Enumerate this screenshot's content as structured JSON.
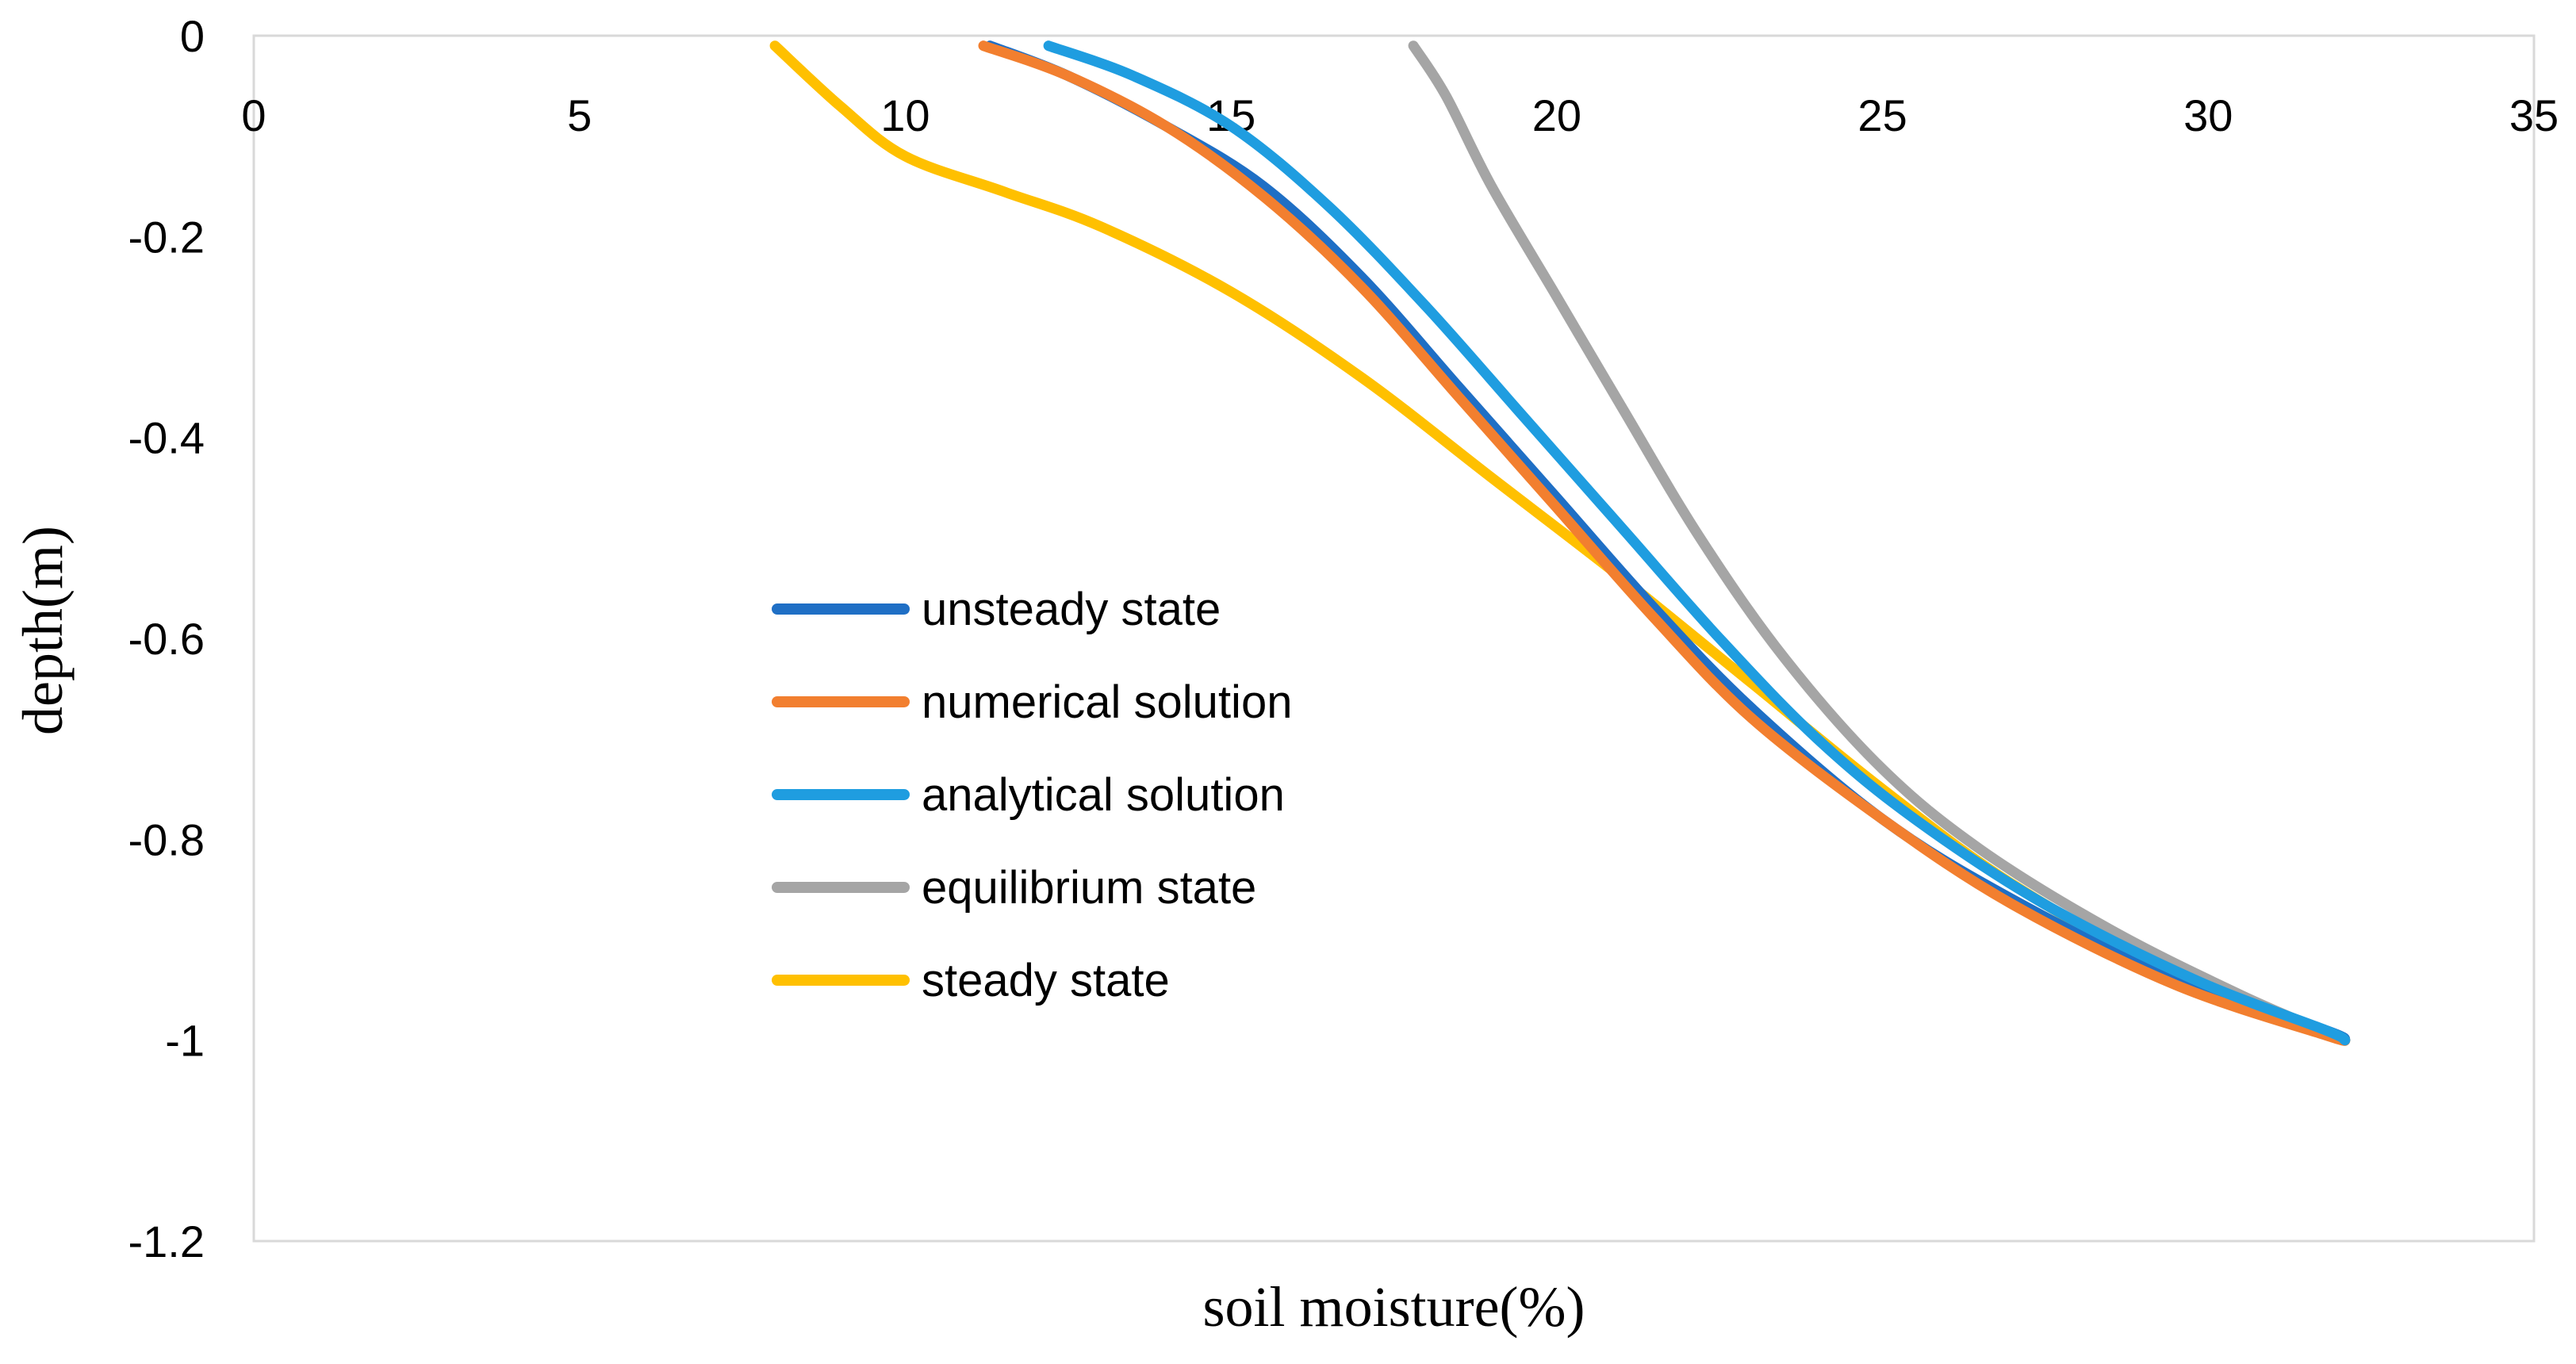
{
  "chart_data": {
    "type": "line",
    "title": "",
    "xlabel": "soil moisture(%)",
    "ylabel": "depth(m)",
    "xlim": [
      0,
      35
    ],
    "ylim": [
      -1.2,
      0
    ],
    "x_ticks": [
      "0",
      "5",
      "10",
      "15",
      "20",
      "25",
      "30",
      "35"
    ],
    "y_ticks": [
      "0",
      "-0.2",
      "-0.4",
      "-0.6",
      "-0.8",
      "-1",
      "-1.2"
    ],
    "x_axis_position": "top",
    "grid": false,
    "legend_position": "center-left",
    "series": [
      {
        "name": "unsteady state",
        "color": "#1f6fc5",
        "points": [
          [
            11.3,
            -0.01
          ],
          [
            12.5,
            -0.04
          ],
          [
            14,
            -0.09
          ],
          [
            15.5,
            -0.15
          ],
          [
            17,
            -0.24
          ],
          [
            18.5,
            -0.35
          ],
          [
            20,
            -0.46
          ],
          [
            21.5,
            -0.57
          ],
          [
            23,
            -0.67
          ],
          [
            25,
            -0.78
          ],
          [
            27,
            -0.86
          ],
          [
            29.5,
            -0.94
          ],
          [
            31.8,
            -0.99
          ],
          [
            32.1,
            -1.0
          ]
        ]
      },
      {
        "name": "numerical solution",
        "color": "#f27f2f",
        "points": [
          [
            11.2,
            -0.01
          ],
          [
            12.5,
            -0.04
          ],
          [
            14,
            -0.09
          ],
          [
            15.5,
            -0.16
          ],
          [
            17,
            -0.25
          ],
          [
            18.5,
            -0.36
          ],
          [
            20,
            -0.47
          ],
          [
            21.5,
            -0.58
          ],
          [
            23,
            -0.68
          ],
          [
            25,
            -0.78
          ],
          [
            27,
            -0.865
          ],
          [
            29.5,
            -0.945
          ],
          [
            31.8,
            -0.995
          ],
          [
            32.1,
            -1.0
          ]
        ]
      },
      {
        "name": "analytical solution",
        "color": "#1f9de0",
        "points": [
          [
            12.2,
            -0.01
          ],
          [
            13.5,
            -0.04
          ],
          [
            15,
            -0.09
          ],
          [
            16.5,
            -0.17
          ],
          [
            18,
            -0.27
          ],
          [
            19.5,
            -0.38
          ],
          [
            21,
            -0.49
          ],
          [
            22.5,
            -0.6
          ],
          [
            24,
            -0.7
          ],
          [
            25.5,
            -0.78
          ],
          [
            27.5,
            -0.865
          ],
          [
            29.8,
            -0.94
          ],
          [
            31.8,
            -0.99
          ],
          [
            32.1,
            -1.0
          ]
        ]
      },
      {
        "name": "equilibrium state",
        "color": "#a5a5a5",
        "points": [
          [
            17.8,
            -0.01
          ],
          [
            18.3,
            -0.06
          ],
          [
            19,
            -0.15
          ],
          [
            20,
            -0.26
          ],
          [
            21,
            -0.37
          ],
          [
            22.2,
            -0.5
          ],
          [
            23.5,
            -0.62
          ],
          [
            25,
            -0.73
          ],
          [
            26.5,
            -0.81
          ],
          [
            28.5,
            -0.89
          ],
          [
            30.5,
            -0.955
          ],
          [
            32.1,
            -1.0
          ]
        ]
      },
      {
        "name": "steady state",
        "color": "#ffc000",
        "points": [
          [
            8.0,
            -0.01
          ],
          [
            9,
            -0.07
          ],
          [
            10,
            -0.12
          ],
          [
            11.5,
            -0.155
          ],
          [
            13,
            -0.19
          ],
          [
            15,
            -0.255
          ],
          [
            17,
            -0.34
          ],
          [
            19,
            -0.44
          ],
          [
            21,
            -0.54
          ],
          [
            23,
            -0.645
          ],
          [
            25,
            -0.75
          ],
          [
            27,
            -0.845
          ],
          [
            29.5,
            -0.935
          ],
          [
            32.1,
            -1.0
          ]
        ]
      }
    ]
  }
}
